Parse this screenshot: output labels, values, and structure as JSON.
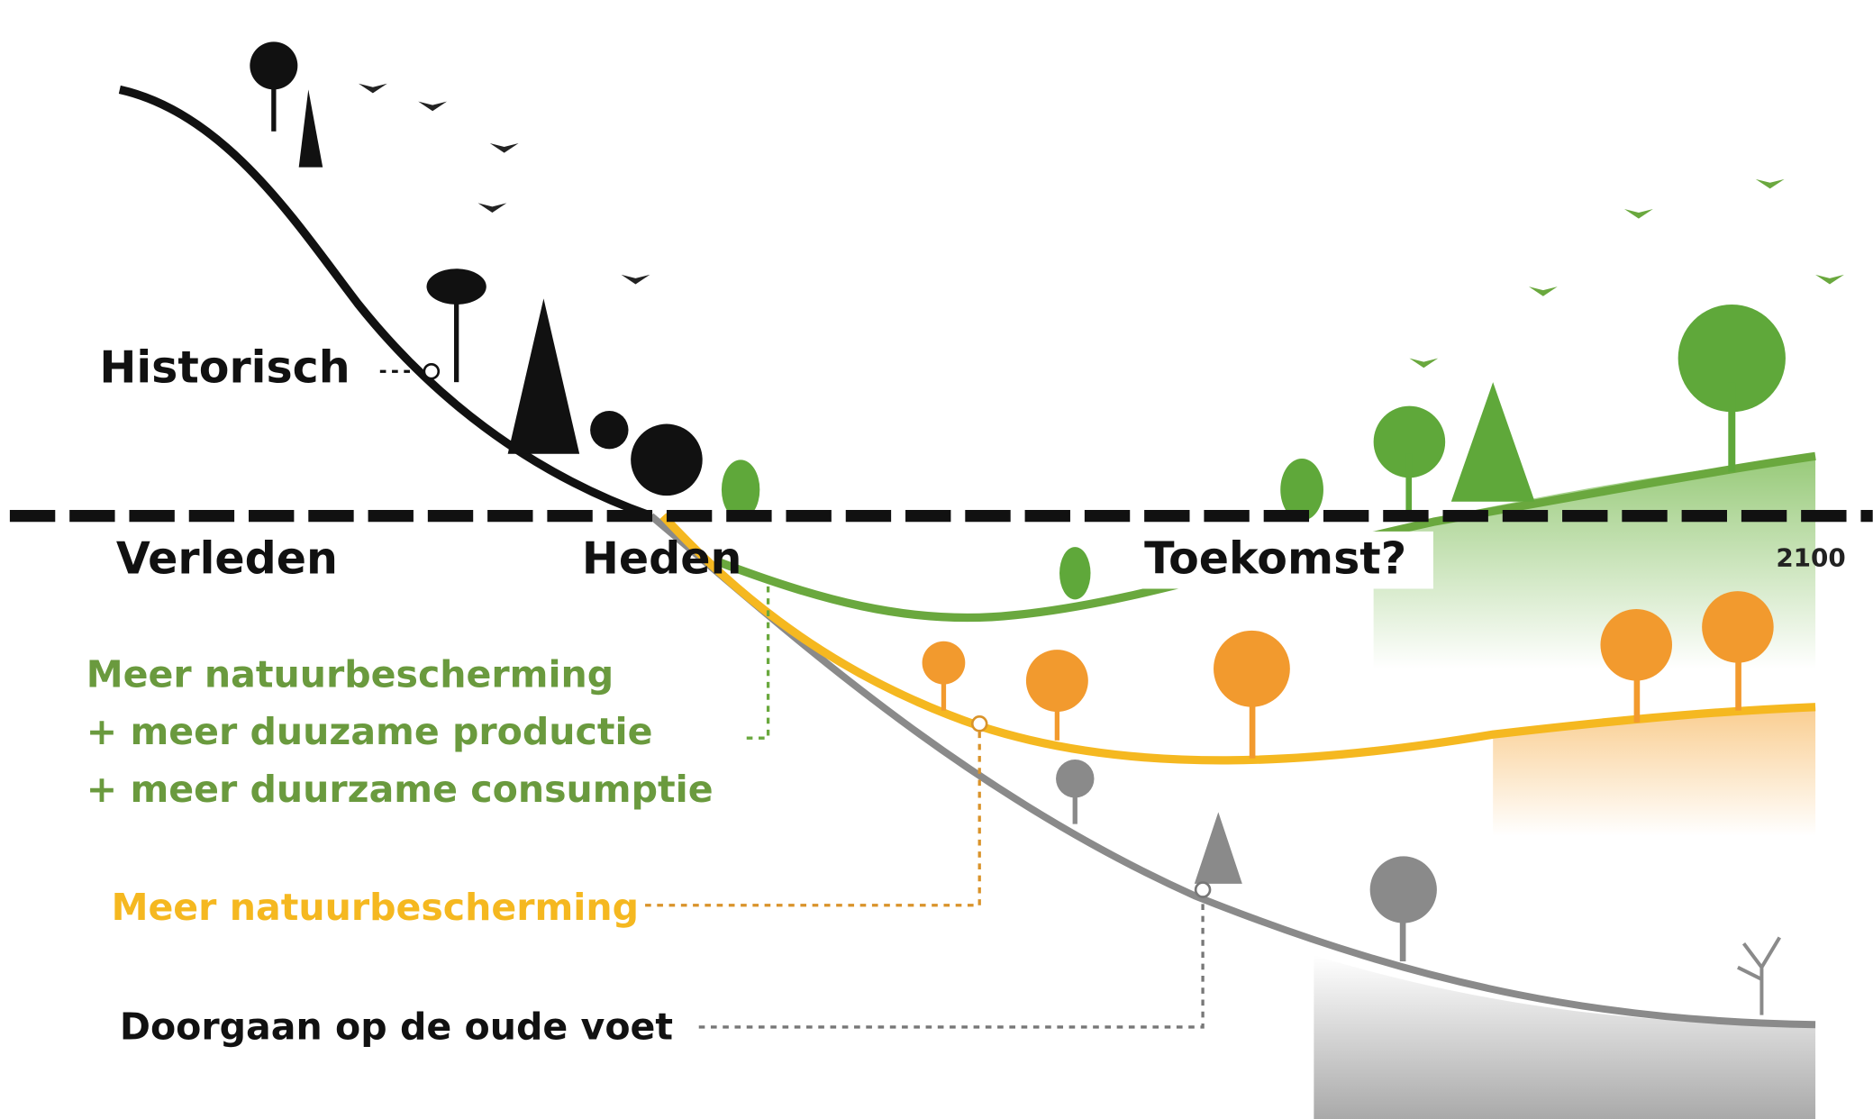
{
  "labels": {
    "historical": "Historisch",
    "past": "Verleden",
    "present": "Heden",
    "future": "Toekomst?",
    "year": "2100"
  },
  "scenarios": [
    {
      "lines": [
        "Meer natuurbescherming",
        "+ meer duuzame productie",
        "+ meer duurzame consumptie"
      ]
    },
    {
      "lines": [
        "Meer natuurbescherming"
      ]
    },
    {
      "lines": [
        "Doorgaan op de oude voet"
      ]
    }
  ]
}
